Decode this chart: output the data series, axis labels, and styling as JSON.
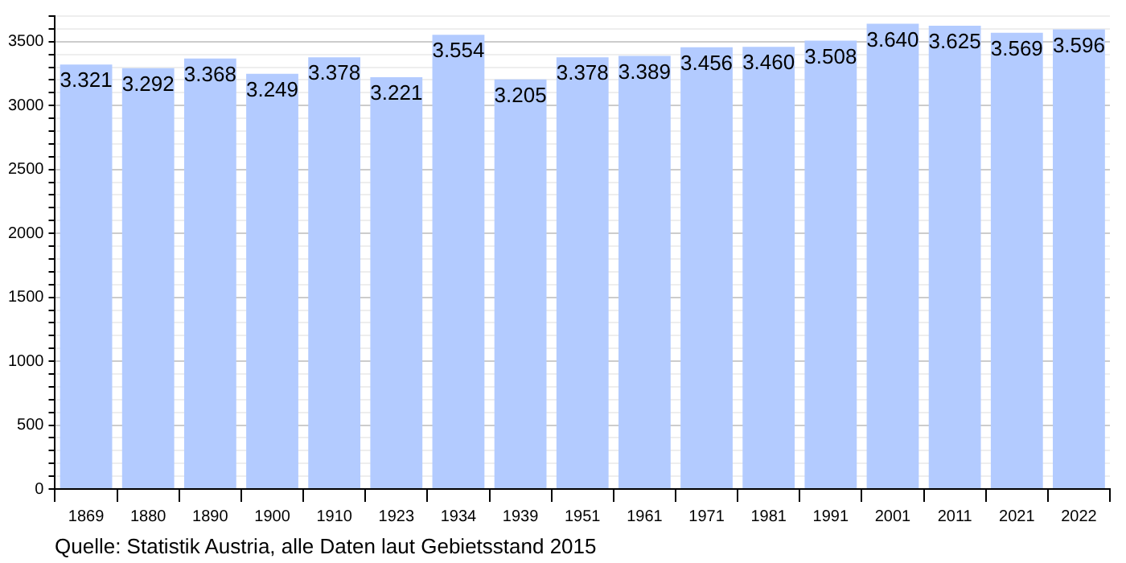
{
  "chart_data": {
    "type": "bar",
    "categories": [
      "1869",
      "1880",
      "1890",
      "1900",
      "1910",
      "1923",
      "1934",
      "1939",
      "1951",
      "1961",
      "1971",
      "1981",
      "1991",
      "2001",
      "2011",
      "2021",
      "2022"
    ],
    "values": [
      3321,
      3292,
      3368,
      3249,
      3378,
      3221,
      3554,
      3205,
      3378,
      3389,
      3456,
      3460,
      3508,
      3640,
      3625,
      3569,
      3596
    ],
    "value_labels": [
      "3.321",
      "3.292",
      "3.368",
      "3.249",
      "3.378",
      "3.221",
      "3.554",
      "3.205",
      "3.378",
      "3.389",
      "3.456",
      "3.460",
      "3.508",
      "3.640",
      "3.625",
      "3.569",
      "3.596"
    ],
    "color": "#b3cbff",
    "ylim": [
      0,
      3700
    ],
    "yticks": [
      0,
      {
        "value": 100,
        "label": null
      },
      {
        "value": 200,
        "label": null
      },
      {
        "value": 300,
        "label": null
      },
      {
        "value": 400,
        "label": null
      },
      500,
      {
        "value": 600,
        "label": null
      },
      {
        "value": 700,
        "label": null
      },
      {
        "value": 800,
        "label": null
      },
      {
        "value": 900,
        "label": null
      },
      1000,
      {
        "value": 1100,
        "label": null
      },
      {
        "value": 1200,
        "label": null
      },
      {
        "value": 1300,
        "label": null
      },
      {
        "value": 1400,
        "label": null
      },
      1500,
      {
        "value": 1600,
        "label": null
      },
      {
        "value": 1700,
        "label": null
      },
      {
        "value": 1800,
        "label": null
      },
      {
        "value": 1900,
        "label": null
      },
      2000,
      {
        "value": 2100,
        "label": null
      },
      {
        "value": 2200,
        "label": null
      },
      {
        "value": 2300,
        "label": null
      },
      {
        "value": 2400,
        "label": null
      },
      2500,
      {
        "value": 2600,
        "label": null
      },
      {
        "value": 2700,
        "label": null
      },
      {
        "value": 2800,
        "label": null
      },
      {
        "value": 2900,
        "label": null
      },
      3000,
      {
        "value": 3100,
        "label": null
      },
      {
        "value": 3200,
        "label": null
      },
      {
        "value": 3300,
        "label": null
      },
      {
        "value": 3400,
        "label": null
      },
      3500,
      {
        "value": 3600,
        "label": null
      },
      {
        "value": 3700,
        "label": null
      }
    ],
    "grid": true,
    "legend": false,
    "annotations": [
      "Quelle: Statistik Austria, alle Daten laut Gebietsstand 2015"
    ]
  }
}
